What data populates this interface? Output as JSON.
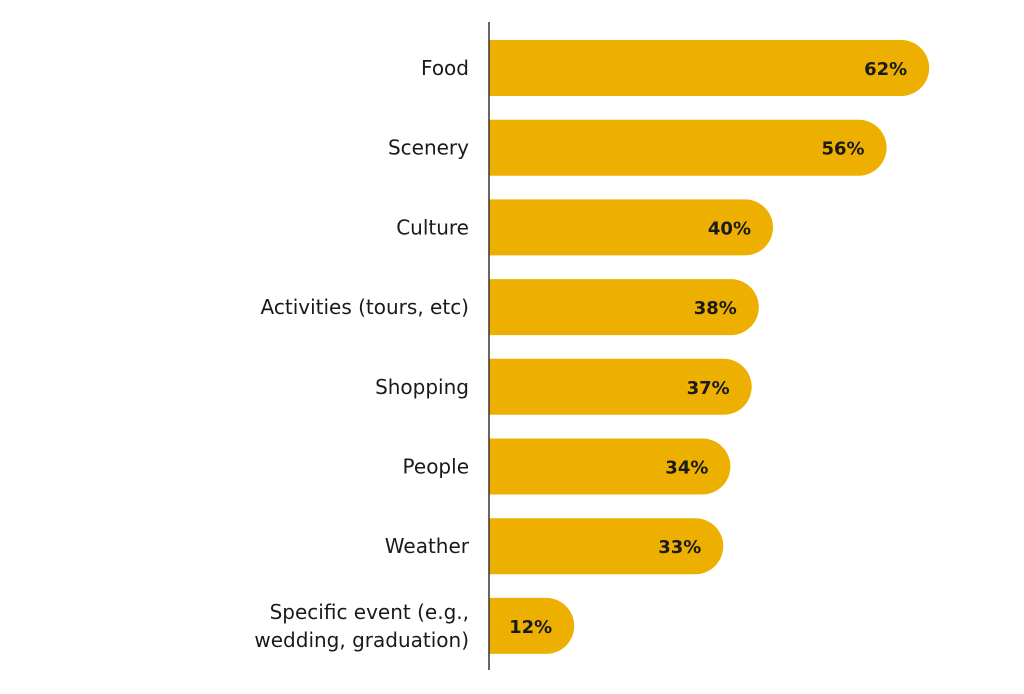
{
  "chart_data": {
    "type": "bar",
    "orientation": "horizontal",
    "categories": [
      "Food",
      "Scenery",
      "Culture",
      "Activities (tours, etc)",
      "Shopping",
      "People",
      "Weather",
      "Specific event (e.g., wedding, graduation)"
    ],
    "values": [
      62,
      56,
      40,
      38,
      37,
      34,
      33,
      12
    ],
    "value_labels": [
      "62%",
      "56%",
      "40%",
      "38%",
      "37%",
      "34%",
      "33%",
      "12%"
    ],
    "unit": "%",
    "title": "",
    "xlabel": "",
    "ylabel": "",
    "grid": false,
    "legend": "none",
    "bar_color": "#EEB000",
    "axis_color": "#333333"
  }
}
